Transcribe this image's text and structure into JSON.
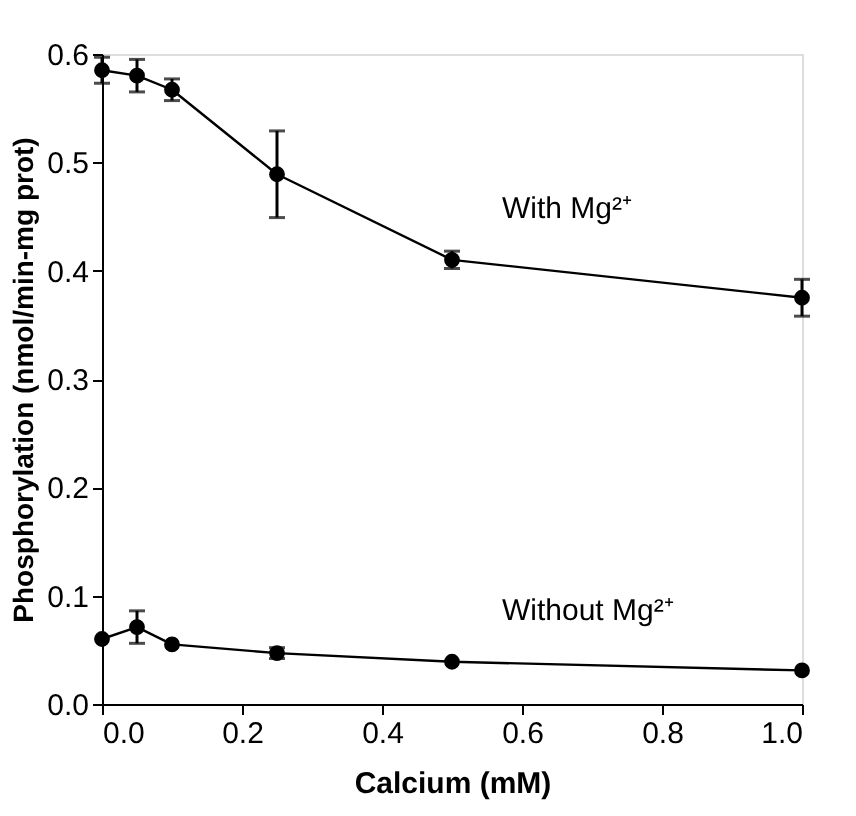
{
  "chart_data": {
    "type": "line",
    "xlabel": "Calcium  (mM)",
    "ylabel": "Phosphorylation (nmol/min-mg prot)",
    "xlim": [
      0,
      1.0
    ],
    "ylim": [
      0,
      0.6
    ],
    "xticks": [
      {
        "value": 0,
        "label": "0.0"
      },
      {
        "value": 0.2,
        "label": "0.2"
      },
      {
        "value": 0.4,
        "label": "0.4"
      },
      {
        "value": 0.6,
        "label": "0.6"
      },
      {
        "value": 0.8,
        "label": "0.8"
      },
      {
        "value": 1.0,
        "label": "1.0"
      }
    ],
    "yticks": [
      {
        "value": 0,
        "label": "0.0"
      },
      {
        "value": 0.1,
        "label": "0.1"
      },
      {
        "value": 0.2,
        "label": "0.2"
      },
      {
        "value": 0.3,
        "label": "0.3"
      },
      {
        "value": 0.4,
        "label": "0.4"
      },
      {
        "value": 0.5,
        "label": "0.5"
      },
      {
        "value": 0.6,
        "label": "0.6"
      }
    ],
    "marker": "circle",
    "line_style": "solid",
    "grid": false,
    "series": [
      {
        "name": "With Mg²⁺",
        "color": "#000000",
        "x": [
          0,
          0.05,
          0.1,
          0.25,
          0.5,
          1.0
        ],
        "values": [
          0.585,
          0.58,
          0.567,
          0.489,
          0.41,
          0.375
        ],
        "errors": [
          0.012,
          0.015,
          0.01,
          0.04,
          0.008,
          0.017
        ]
      },
      {
        "name": "Without Mg²⁺",
        "color": "#000000",
        "x": [
          0,
          0.05,
          0.1,
          0.25,
          0.5,
          1.0
        ],
        "values": [
          0.06,
          0.071,
          0.055,
          0.047,
          0.039,
          0.031
        ],
        "errors": [
          null,
          0.015,
          null,
          0.005,
          null,
          null
        ]
      }
    ]
  }
}
